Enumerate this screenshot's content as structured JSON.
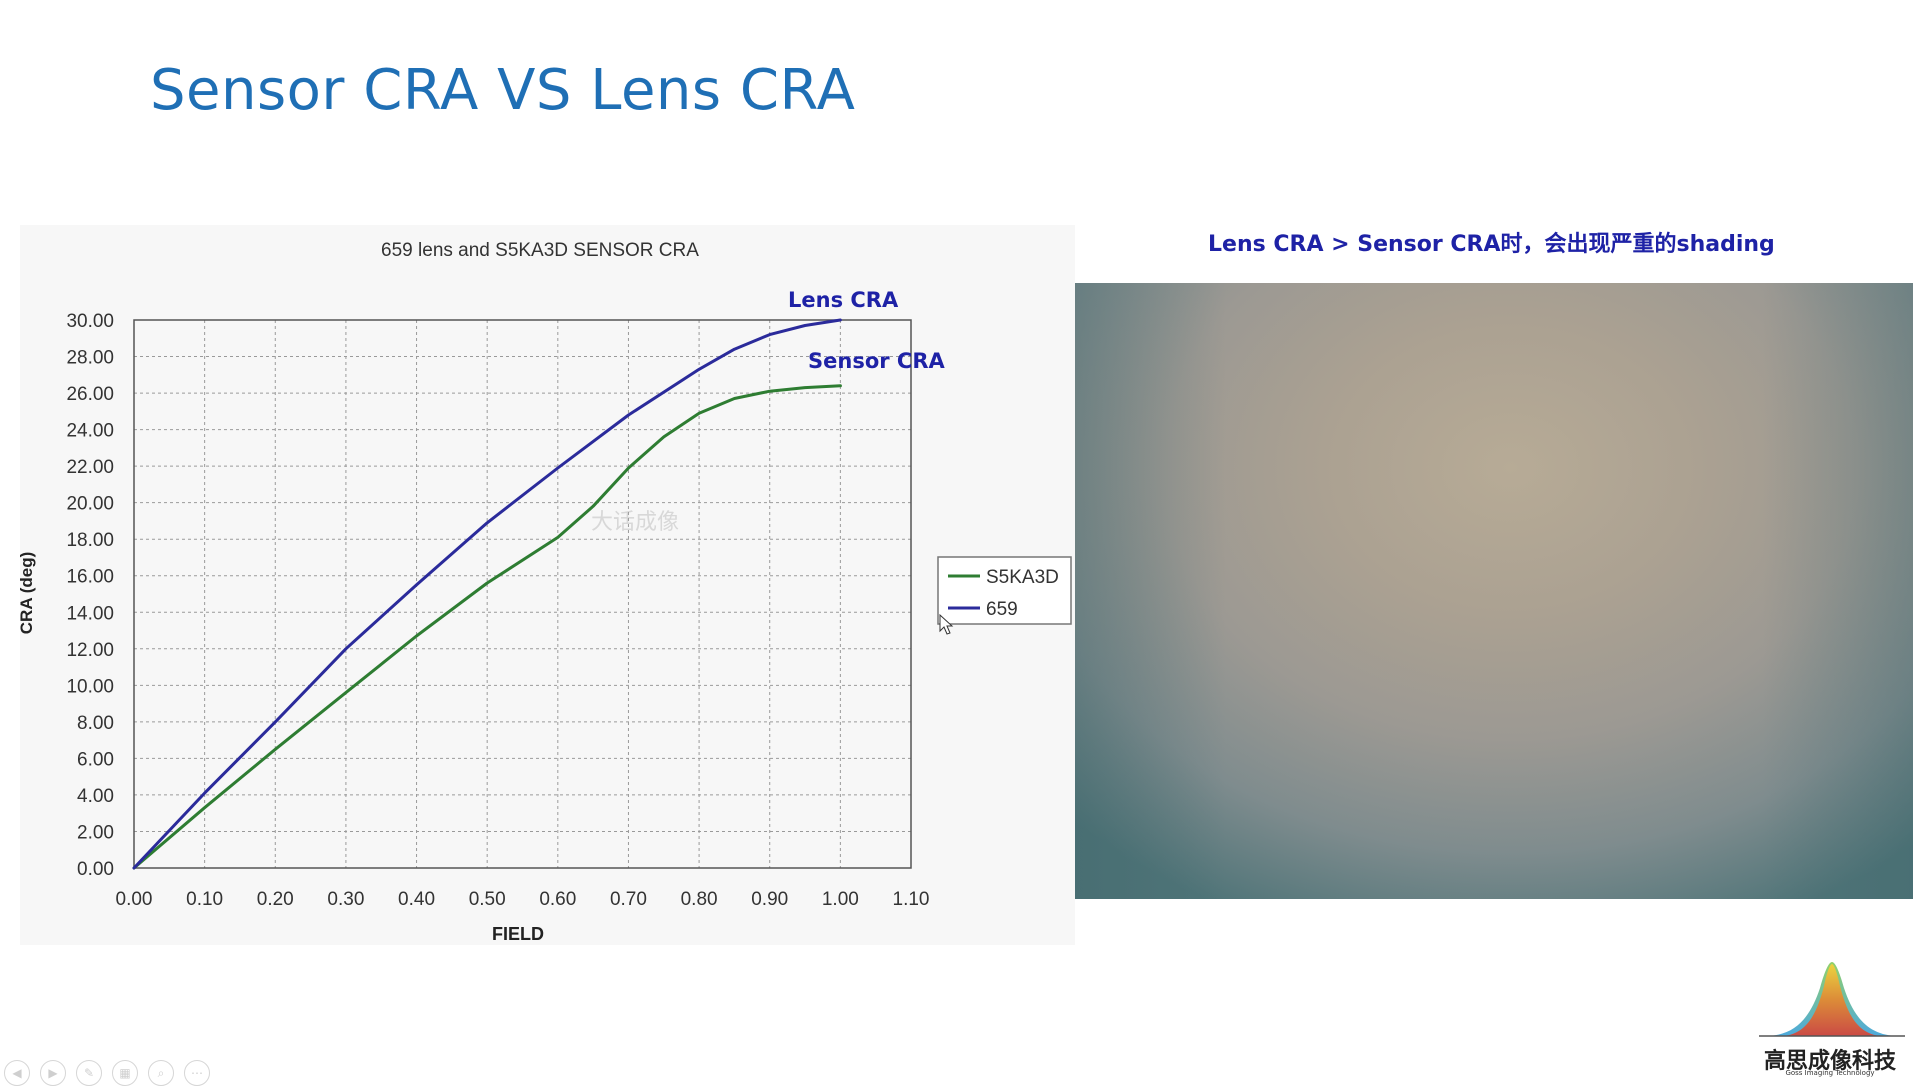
{
  "slide": {
    "title": "Sensor CRA VS Lens CRA",
    "photo_caption": "Lens CRA > Sensor CRA时，会出现严重的shading"
  },
  "logo": {
    "text": "高思成像科技",
    "subtext": "Goss Imaging Technology"
  },
  "toolbar": {
    "buttons": [
      "prev",
      "next",
      "pen",
      "slides",
      "zoom",
      "more"
    ]
  },
  "colors": {
    "title": "#1f6fb5",
    "annotation": "#1e22a6",
    "series_s5ka3d": "#2e7d32",
    "series_659": "#2b2b9b"
  },
  "chart_data": {
    "type": "line",
    "title": "659 lens and S5KA3D SENSOR CRA",
    "xlabel": "FIELD",
    "ylabel": "CRA (deg)",
    "xlim": [
      0,
      1.1
    ],
    "ylim": [
      0,
      30
    ],
    "x_ticks": [
      "0.00",
      "0.10",
      "0.20",
      "0.30",
      "0.40",
      "0.50",
      "0.60",
      "0.70",
      "0.80",
      "0.90",
      "1.00",
      "1.10"
    ],
    "y_ticks": [
      "0.00",
      "2.00",
      "4.00",
      "6.00",
      "8.00",
      "10.00",
      "12.00",
      "14.00",
      "16.00",
      "18.00",
      "20.00",
      "22.00",
      "24.00",
      "26.00",
      "28.00",
      "30.00"
    ],
    "grid": true,
    "legend_position": "right",
    "watermark": "大话成像",
    "annotations": [
      {
        "text": "Lens CRA",
        "x": 0.98,
        "y": 30.0
      },
      {
        "text": "Sensor CRA",
        "x": 1.0,
        "y": 26.4
      }
    ],
    "series": [
      {
        "name": "S5KA3D",
        "x": [
          0,
          0.1,
          0.2,
          0.3,
          0.4,
          0.5,
          0.6,
          0.65,
          0.7,
          0.75,
          0.8,
          0.85,
          0.9,
          0.95,
          1.0
        ],
        "y": [
          0,
          3.3,
          6.5,
          9.6,
          12.7,
          15.6,
          18.1,
          19.8,
          21.9,
          23.6,
          24.9,
          25.7,
          26.1,
          26.3,
          26.4
        ]
      },
      {
        "name": "659",
        "x": [
          0,
          0.1,
          0.2,
          0.3,
          0.4,
          0.5,
          0.6,
          0.7,
          0.8,
          0.85,
          0.9,
          0.95,
          1.0
        ],
        "y": [
          0,
          4.1,
          8.0,
          12.0,
          15.5,
          18.9,
          21.9,
          24.8,
          27.3,
          28.4,
          29.2,
          29.7,
          30.0
        ]
      }
    ]
  }
}
